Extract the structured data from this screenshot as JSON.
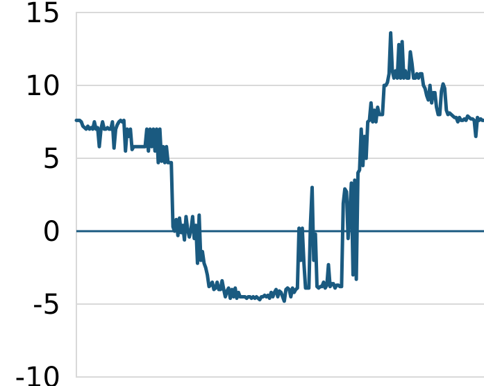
{
  "chart_data": {
    "type": "line",
    "title": "",
    "xlabel": "",
    "ylabel": "",
    "ylim": [
      -10,
      15
    ],
    "y_ticks": [
      "15",
      "10",
      "5",
      "0",
      "-5",
      "-10"
    ],
    "grid": true,
    "zero_line": true,
    "colors": {
      "line": "#1a5a80",
      "zero_line": "#1a5a80",
      "grid": "#d9d9d9"
    },
    "series": [
      {
        "values": [
          7.6,
          7.6,
          7.6,
          7.5,
          7.2,
          7.1,
          7.0,
          7.2,
          7.0,
          7.1,
          7.0,
          7.5,
          7.0,
          7.1,
          5.8,
          7.0,
          7.5,
          7.0,
          7.0,
          7.1,
          7.0,
          7.0,
          7.5,
          5.7,
          7.0,
          7.3,
          7.5,
          7.6,
          7.5,
          7.6,
          5.5,
          7.0,
          6.5,
          7.0,
          5.6,
          5.8,
          5.8,
          5.8,
          5.8,
          5.8,
          5.8,
          5.8,
          5.8,
          7.0,
          5.5,
          7.0,
          5.8,
          7.0,
          5.5,
          7.0,
          4.7,
          7.0,
          4.8,
          5.8,
          4.7,
          5.8,
          4.7,
          4.7,
          4.7,
          0.3,
          0.0,
          0.8,
          -0.3,
          0.9,
          -0.1,
          0.4,
          -0.6,
          1.0,
          0.1,
          -0.4,
          0.1,
          1.0,
          -0.5,
          0.4,
          -2.2,
          1.1,
          -2.0,
          -1.4,
          -2.2,
          -2.5,
          -3.0,
          -3.8,
          -3.7,
          -3.5,
          -4.0,
          -3.9,
          -3.5,
          -4.0,
          -4.0,
          -3.4,
          -4.0,
          -4.5,
          -4.1,
          -3.9,
          -4.6,
          -4.0,
          -4.5,
          -3.9,
          -4.6,
          -4.2,
          -4.5,
          -4.5,
          -4.5,
          -4.5,
          -4.6,
          -4.5,
          -4.5,
          -4.6,
          -4.5,
          -4.6,
          -4.5,
          -4.6,
          -4.7,
          -4.5,
          -4.5,
          -4.4,
          -4.5,
          -4.4,
          -4.6,
          -4.2,
          -4.5,
          -4.2,
          -4.0,
          -4.5,
          -4.1,
          -4.2,
          -4.5,
          -4.8,
          -4.0,
          -3.9,
          -4.0,
          -4.5,
          -3.9,
          -4.2,
          -4.0,
          -3.9,
          0.2,
          -2.0,
          0.2,
          -2.2,
          -3.9,
          -3.9,
          -3.9,
          0.5,
          3.0,
          -2.0,
          -0.2,
          -3.8,
          -3.9,
          -3.8,
          -3.8,
          -3.5,
          -3.9,
          -3.7,
          -2.3,
          -3.8,
          -3.6,
          -3.6,
          -3.9,
          -3.7,
          -3.7,
          -3.8,
          -3.8,
          1.9,
          2.9,
          2.7,
          -0.5,
          1.3,
          3.3,
          -3.0,
          3.5,
          -3.3,
          4.0,
          4.2,
          7.0,
          4.5,
          6.5,
          5.0,
          7.5,
          7.6,
          8.8,
          7.5,
          8.3,
          7.5,
          8.5,
          8.0,
          8.0,
          8.0,
          10.0,
          10.0,
          10.2,
          10.8,
          13.6,
          11.0,
          10.5,
          11.0,
          10.5,
          12.8,
          10.5,
          13.0,
          10.5,
          11.0,
          10.5,
          10.5,
          12.3,
          11.5,
          10.5,
          10.5,
          10.8,
          10.5,
          10.8,
          10.8,
          10.0,
          9.8,
          9.3,
          9.0,
          10.0,
          8.8,
          9.5,
          9.5,
          8.5,
          8.0,
          8.0,
          9.6,
          10.1,
          9.8,
          8.3,
          8.0,
          8.1,
          8.0,
          7.9,
          7.8,
          7.8,
          7.5,
          7.8,
          7.6,
          7.6,
          7.7,
          7.6,
          7.9,
          7.8,
          7.7,
          7.7,
          7.6,
          6.5,
          7.8,
          7.6,
          7.7,
          7.6,
          7.6
        ]
      }
    ]
  }
}
